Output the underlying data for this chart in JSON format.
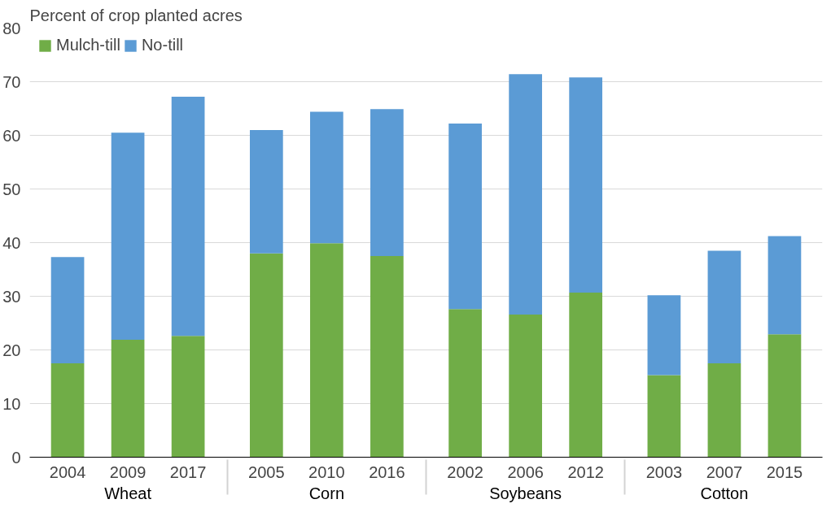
{
  "chart_data": {
    "type": "bar",
    "stacked": true,
    "ylabel": "Percent of crop planted acres",
    "categories": [
      "2004",
      "2009",
      "2017",
      "2005",
      "2010",
      "2016",
      "2002",
      "2006",
      "2012",
      "2003",
      "2007",
      "2015"
    ],
    "series": [
      {
        "name": "Mulch-till",
        "color": "#70ad47",
        "values": [
          17.5,
          21.9,
          22.6,
          38.0,
          39.9,
          37.5,
          27.6,
          26.6,
          30.7,
          15.3,
          17.5,
          22.9
        ]
      },
      {
        "name": "No-till",
        "color": "#5b9bd5",
        "values": [
          19.8,
          38.6,
          44.6,
          23.0,
          24.5,
          27.4,
          34.6,
          44.8,
          40.1,
          14.9,
          21.0,
          18.3
        ]
      }
    ],
    "annotations": [
      "Wheat",
      "Corn",
      "Soybeans",
      "Cotton"
    ],
    "ylim": [
      0,
      80
    ],
    "yticks": [
      0,
      10,
      20,
      30,
      40,
      50,
      60,
      70,
      80
    ],
    "grid": "y",
    "legend": "top left"
  }
}
